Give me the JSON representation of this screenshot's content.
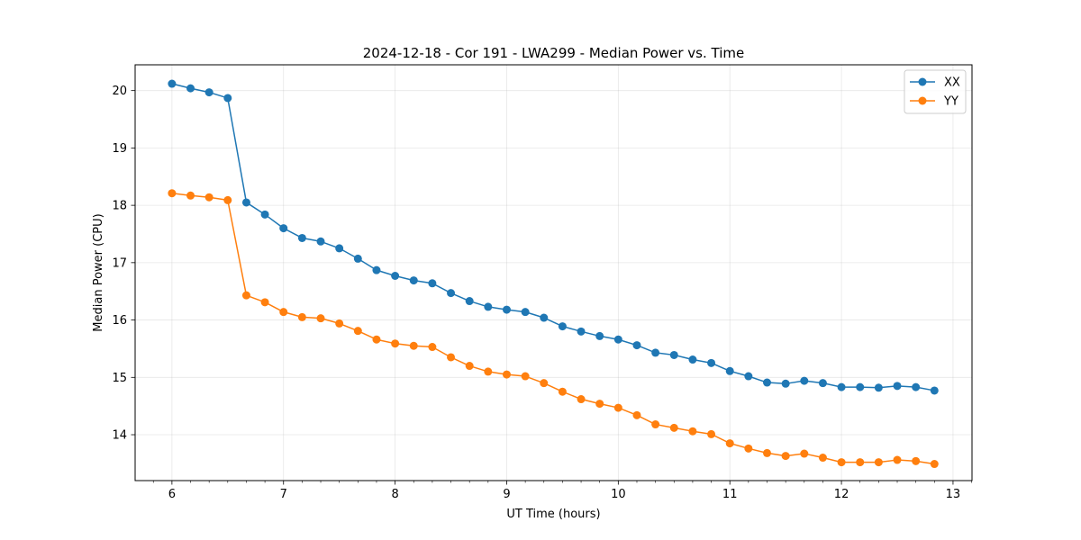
{
  "chart_data": {
    "type": "line",
    "title": "2024-12-18 - Cor 191 - LWA299 - Median Power vs. Time",
    "xlabel": "UT Time (hours)",
    "ylabel": "Median Power (CPU)",
    "xlim": [
      5.67,
      13.17
    ],
    "ylim": [
      13.2,
      20.45
    ],
    "xticks": [
      6,
      7,
      8,
      9,
      10,
      11,
      12,
      13
    ],
    "yticks": [
      14,
      15,
      16,
      17,
      18,
      19,
      20
    ],
    "grid": true,
    "legend_position": "top-right",
    "x": [
      6.0,
      6.1667,
      6.3333,
      6.5,
      6.6667,
      6.8333,
      7.0,
      7.1667,
      7.3333,
      7.5,
      7.6667,
      7.8333,
      8.0,
      8.1667,
      8.3333,
      8.5,
      8.6667,
      8.8333,
      9.0,
      9.1667,
      9.3333,
      9.5,
      9.6667,
      9.8333,
      10.0,
      10.1667,
      10.3333,
      10.5,
      10.6667,
      10.8333,
      11.0,
      11.1667,
      11.3333,
      11.5,
      11.6667,
      11.8333,
      12.0,
      12.1667,
      12.3333,
      12.5,
      12.6667,
      12.8333
    ],
    "series": [
      {
        "name": "XX",
        "color": "#1f77b4",
        "values": [
          20.12,
          20.04,
          19.97,
          19.87,
          18.05,
          17.84,
          17.6,
          17.43,
          17.37,
          17.25,
          17.07,
          16.87,
          16.77,
          16.69,
          16.64,
          16.47,
          16.33,
          16.23,
          16.18,
          16.14,
          16.04,
          15.89,
          15.8,
          15.72,
          15.66,
          15.56,
          15.43,
          15.39,
          15.31,
          15.25,
          15.11,
          15.02,
          14.91,
          14.89,
          14.94,
          14.9,
          14.83,
          14.83,
          14.82,
          14.85,
          14.83,
          14.77
        ]
      },
      {
        "name": "YY",
        "color": "#ff7f0e",
        "values": [
          18.21,
          18.17,
          18.14,
          18.09,
          16.43,
          16.31,
          16.14,
          16.05,
          16.03,
          15.94,
          15.81,
          15.66,
          15.59,
          15.55,
          15.53,
          15.35,
          15.2,
          15.1,
          15.05,
          15.02,
          14.9,
          14.75,
          14.62,
          14.54,
          14.47,
          14.34,
          14.18,
          14.12,
          14.06,
          14.01,
          13.85,
          13.76,
          13.68,
          13.63,
          13.67,
          13.6,
          13.52,
          13.52,
          13.52,
          13.56,
          13.54,
          13.49
        ]
      }
    ]
  }
}
